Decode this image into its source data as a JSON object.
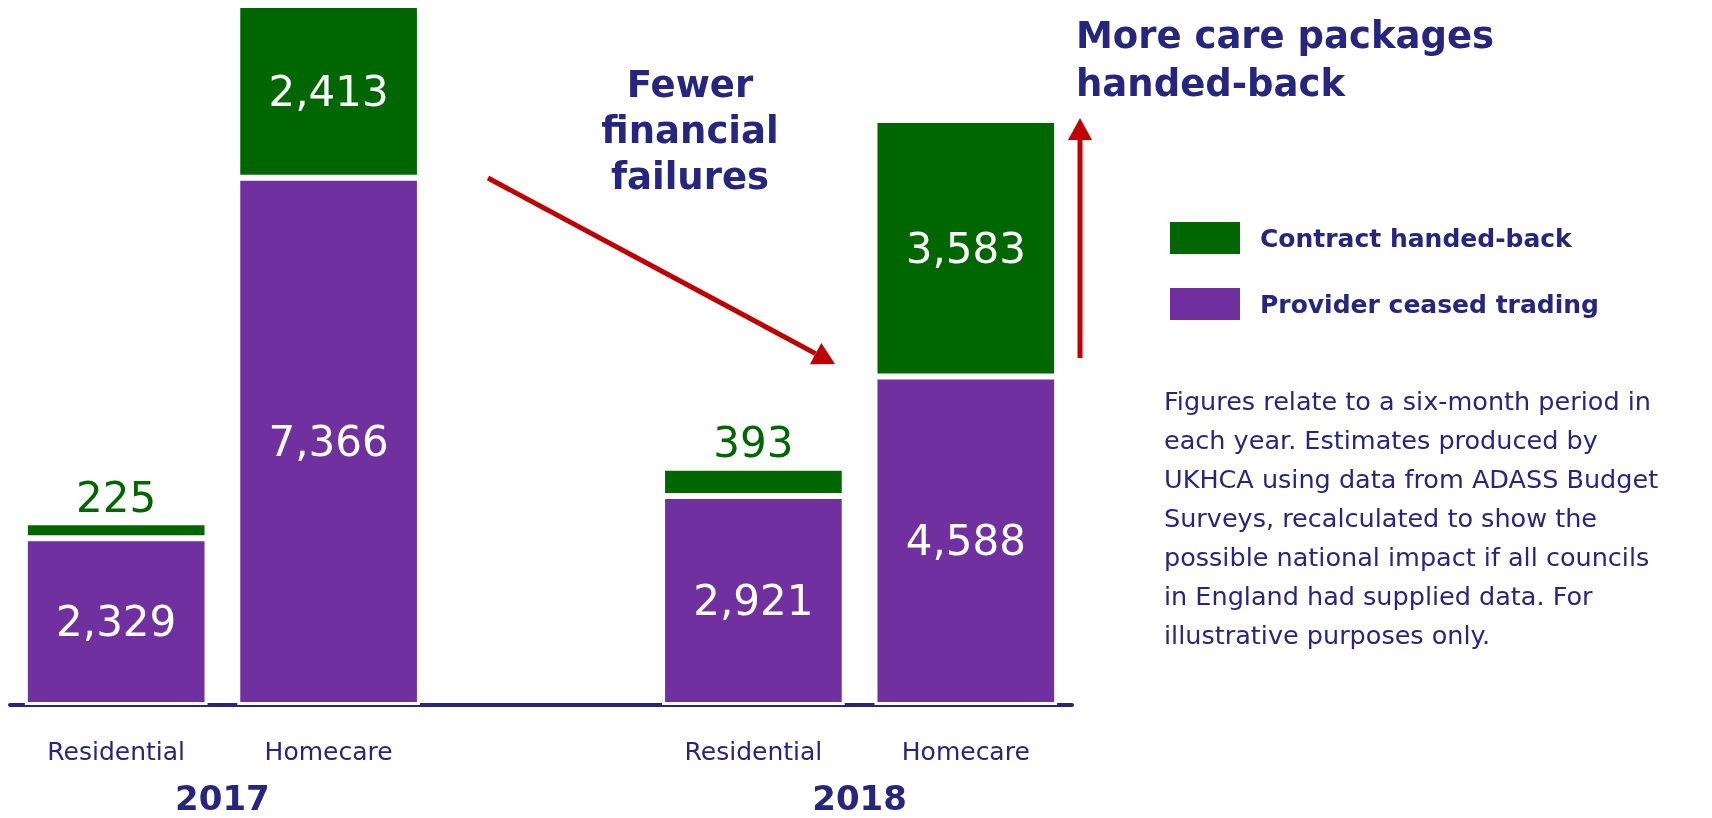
{
  "chart_data": {
    "type": "bar",
    "stacked": true,
    "legend": "right",
    "grid": false,
    "categories": [
      "Residential",
      "Homecare",
      null,
      "Residential",
      "Homecare"
    ],
    "series": [
      {
        "name": "Provider ceased trading",
        "color": "#7030a0",
        "values": [
          2329,
          7366,
          null,
          2921,
          4588
        ],
        "value_labels": [
          "2,329",
          "7,366",
          null,
          "2,921",
          "4,588"
        ]
      },
      {
        "name": "Contract handed-back",
        "color": "#006600",
        "values": [
          225,
          2413,
          null,
          393,
          3583
        ],
        "value_labels": [
          "225",
          "2,413",
          null,
          "393",
          "3,583"
        ]
      }
    ],
    "annotations": [
      "2017",
      "2018",
      "Fewer financial failures",
      "More care packages handed-back",
      "Figures relate to a six-month period in each year. Estimates produced by UKHCA using data from ADASS Budget Surveys, recalculated to show the possible national impact if all councils in England had supplied data. For illustrative purposes only."
    ]
  }
}
